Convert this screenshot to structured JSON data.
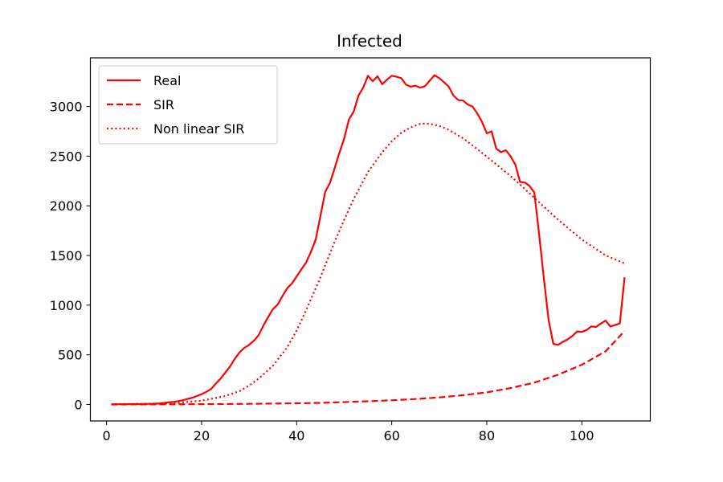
{
  "chart_data": {
    "type": "line",
    "title": "Infected",
    "xlabel": "",
    "ylabel": "",
    "xlim": [
      -3.4,
      114.4
    ],
    "ylim": [
      -166,
      3490
    ],
    "xticks": [
      0,
      20,
      40,
      60,
      80,
      100
    ],
    "yticks": [
      0,
      500,
      1000,
      1500,
      2000,
      2500,
      3000
    ],
    "grid": false,
    "legend_position": "top-left",
    "series": [
      {
        "name": "Real",
        "style": "solid",
        "color": "#ff0000",
        "points": [
          [
            1,
            2
          ],
          [
            2,
            2
          ],
          [
            3,
            2
          ],
          [
            4,
            3
          ],
          [
            5,
            3
          ],
          [
            6,
            4
          ],
          [
            7,
            4
          ],
          [
            8,
            5
          ],
          [
            9,
            6
          ],
          [
            10,
            7
          ],
          [
            11,
            9
          ],
          [
            12,
            14
          ],
          [
            13,
            22
          ],
          [
            14,
            25
          ],
          [
            15,
            33
          ],
          [
            16,
            42
          ],
          [
            17,
            55
          ],
          [
            18,
            68
          ],
          [
            19,
            85
          ],
          [
            20,
            103
          ],
          [
            21,
            128
          ],
          [
            22,
            155
          ],
          [
            23,
            210
          ],
          [
            24,
            260
          ],
          [
            25,
            322
          ],
          [
            26,
            385
          ],
          [
            27,
            462
          ],
          [
            28,
            525
          ],
          [
            29,
            570
          ],
          [
            30,
            600
          ],
          [
            31,
            642
          ],
          [
            32,
            698
          ],
          [
            33,
            795
          ],
          [
            34,
            880
          ],
          [
            35,
            960
          ],
          [
            36,
            1005
          ],
          [
            37,
            1090
          ],
          [
            38,
            1170
          ],
          [
            39,
            1218
          ],
          [
            40,
            1290
          ],
          [
            41,
            1360
          ],
          [
            42,
            1430
          ],
          [
            43,
            1535
          ],
          [
            44,
            1660
          ],
          [
            45,
            1900
          ],
          [
            46,
            2140
          ],
          [
            47,
            2230
          ],
          [
            48,
            2380
          ],
          [
            49,
            2535
          ],
          [
            50,
            2680
          ],
          [
            51,
            2870
          ],
          [
            52,
            2950
          ],
          [
            53,
            3110
          ],
          [
            54,
            3190
          ],
          [
            55,
            3310
          ],
          [
            56,
            3255
          ],
          [
            57,
            3305
          ],
          [
            58,
            3225
          ],
          [
            59,
            3270
          ],
          [
            60,
            3310
          ],
          [
            61,
            3300
          ],
          [
            62,
            3285
          ],
          [
            63,
            3220
          ],
          [
            64,
            3200
          ],
          [
            65,
            3210
          ],
          [
            66,
            3190
          ],
          [
            67,
            3205
          ],
          [
            68,
            3260
          ],
          [
            69,
            3315
          ],
          [
            70,
            3285
          ],
          [
            71,
            3245
          ],
          [
            72,
            3200
          ],
          [
            73,
            3110
          ],
          [
            74,
            3065
          ],
          [
            75,
            3060
          ],
          [
            76,
            3020
          ],
          [
            77,
            3000
          ],
          [
            78,
            2930
          ],
          [
            79,
            2845
          ],
          [
            80,
            2730
          ],
          [
            81,
            2750
          ],
          [
            82,
            2575
          ],
          [
            83,
            2540
          ],
          [
            84,
            2560
          ],
          [
            85,
            2500
          ],
          [
            86,
            2415
          ],
          [
            87,
            2240
          ],
          [
            88,
            2235
          ],
          [
            89,
            2200
          ],
          [
            90,
            2135
          ],
          [
            91,
            1720
          ],
          [
            92,
            1270
          ],
          [
            93,
            850
          ],
          [
            94,
            610
          ],
          [
            95,
            600
          ],
          [
            96,
            630
          ],
          [
            97,
            655
          ],
          [
            98,
            690
          ],
          [
            99,
            735
          ],
          [
            100,
            730
          ],
          [
            101,
            750
          ],
          [
            102,
            785
          ],
          [
            103,
            780
          ],
          [
            104,
            815
          ],
          [
            105,
            845
          ],
          [
            106,
            785
          ],
          [
            107,
            800
          ],
          [
            108,
            815
          ],
          [
            109,
            1280
          ]
        ]
      },
      {
        "name": "SIR",
        "style": "dashed",
        "color": "#ff0000",
        "points": [
          [
            1,
            0
          ],
          [
            10,
            1
          ],
          [
            20,
            3
          ],
          [
            30,
            6
          ],
          [
            40,
            12
          ],
          [
            45,
            16
          ],
          [
            50,
            24
          ],
          [
            55,
            32
          ],
          [
            60,
            42
          ],
          [
            65,
            55
          ],
          [
            70,
            71
          ],
          [
            75,
            93
          ],
          [
            80,
            122
          ],
          [
            85,
            165
          ],
          [
            90,
            220
          ],
          [
            95,
            300
          ],
          [
            100,
            400
          ],
          [
            105,
            535
          ],
          [
            109,
            740
          ]
        ]
      },
      {
        "name": "Non linear SIR",
        "style": "dotted",
        "color": "#ff0000",
        "points": [
          [
            1,
            3
          ],
          [
            5,
            5
          ],
          [
            10,
            9
          ],
          [
            15,
            17
          ],
          [
            20,
            38
          ],
          [
            25,
            85
          ],
          [
            28,
            135
          ],
          [
            30,
            190
          ],
          [
            32,
            260
          ],
          [
            35,
            390
          ],
          [
            38,
            575
          ],
          [
            40,
            745
          ],
          [
            42,
            950
          ],
          [
            45,
            1280
          ],
          [
            48,
            1640
          ],
          [
            50,
            1860
          ],
          [
            52,
            2070
          ],
          [
            55,
            2340
          ],
          [
            58,
            2540
          ],
          [
            60,
            2650
          ],
          [
            62,
            2735
          ],
          [
            64,
            2790
          ],
          [
            66,
            2825
          ],
          [
            67,
            2828
          ],
          [
            68,
            2825
          ],
          [
            70,
            2805
          ],
          [
            72,
            2765
          ],
          [
            75,
            2680
          ],
          [
            78,
            2570
          ],
          [
            80,
            2495
          ],
          [
            85,
            2300
          ],
          [
            88,
            2170
          ],
          [
            90,
            2080
          ],
          [
            95,
            1860
          ],
          [
            100,
            1660
          ],
          [
            105,
            1500
          ],
          [
            109,
            1420
          ]
        ]
      }
    ]
  }
}
